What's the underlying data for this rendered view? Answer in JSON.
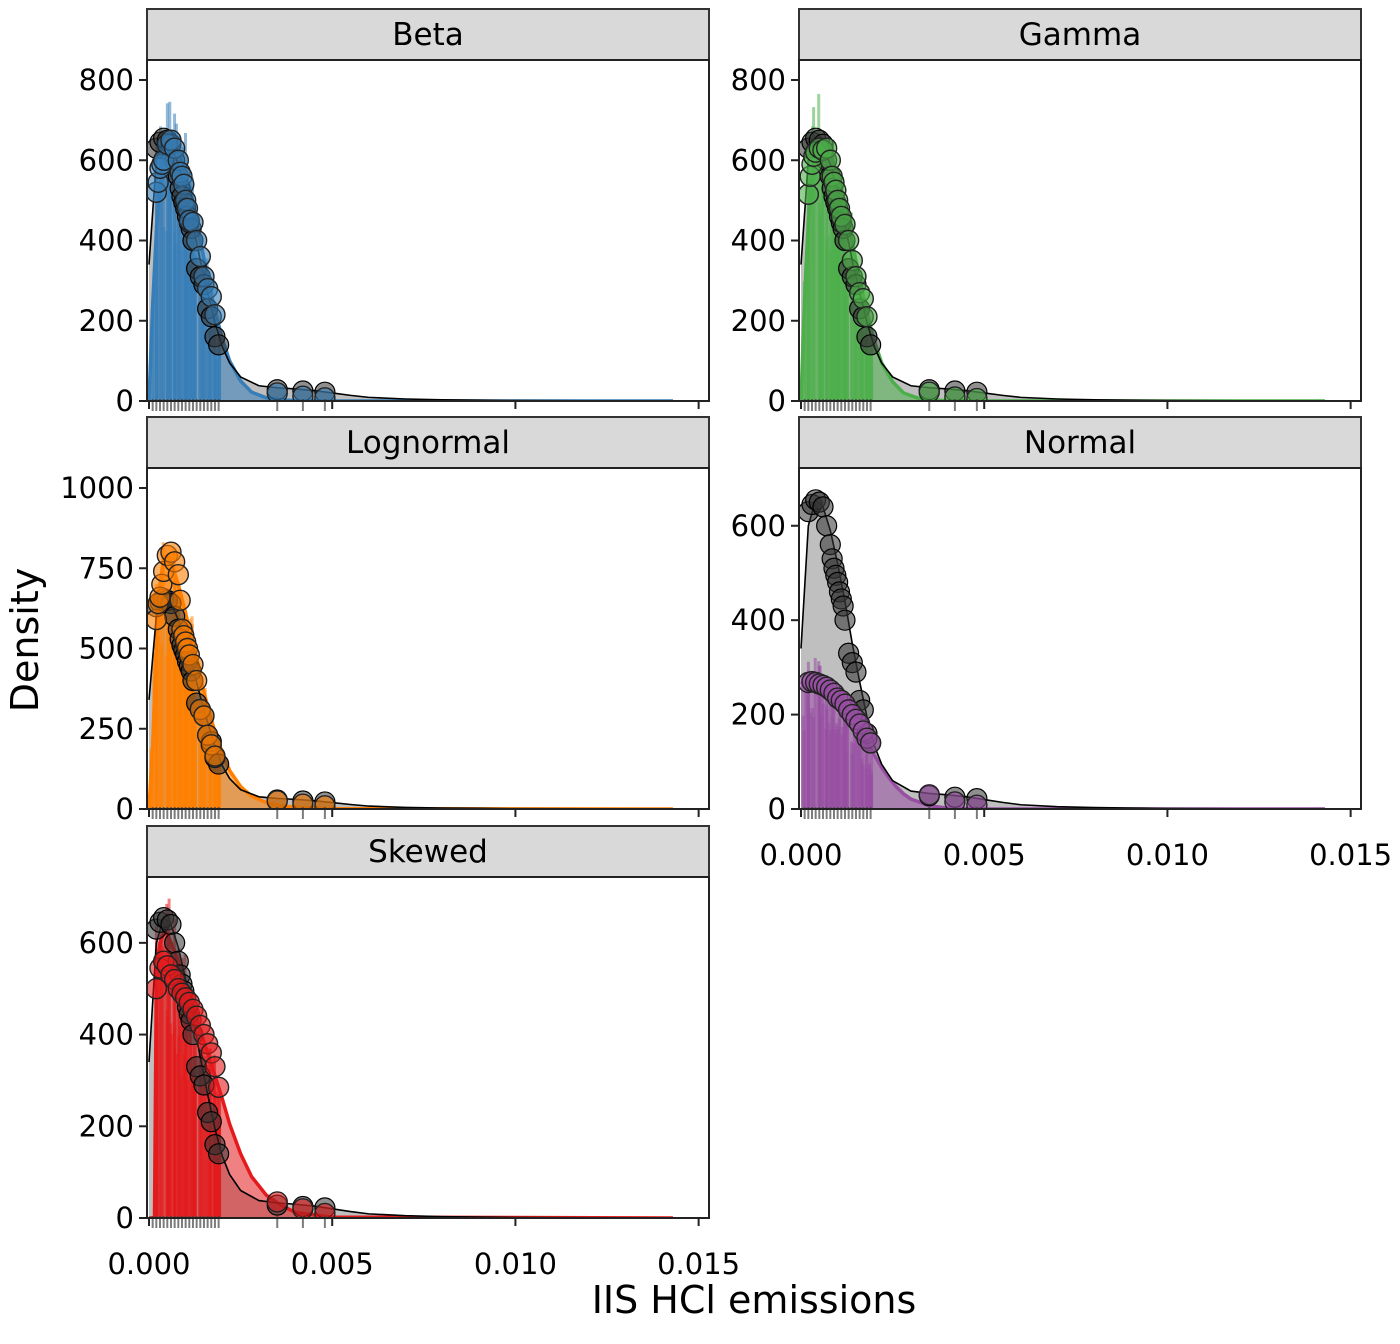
{
  "chart_data": {
    "type": "area",
    "facet_layout": "2 columns, 3 rows",
    "xlabel": "IIS HCl emissions",
    "ylabel": "Density",
    "xlim": [
      0,
      0.0143
    ],
    "x_ticks": [
      0.0,
      0.005,
      0.01,
      0.015
    ],
    "x_tick_labels": [
      "0.000",
      "0.005",
      "0.010",
      "0.015"
    ],
    "grid": false,
    "reference": {
      "color": "#000000",
      "curve": {
        "x": [
          0,
          0.0002,
          0.0004,
          0.0006,
          0.0008,
          0.001,
          0.0012,
          0.0014,
          0.0016,
          0.0018,
          0.002,
          0.0022,
          0.0025,
          0.003,
          0.0035,
          0.004,
          0.0045,
          0.005,
          0.0055,
          0.006,
          0.007,
          0.008,
          0.009,
          0.01,
          0.012,
          0.0143
        ],
        "y": [
          340,
          600,
          655,
          640,
          590,
          520,
          440,
          350,
          270,
          195,
          135,
          95,
          60,
          38,
          33,
          30,
          26,
          20,
          14,
          9,
          5,
          3,
          2,
          1,
          0.5,
          0.2
        ]
      },
      "points": {
        "x": [
          0.0002,
          0.0003,
          0.0004,
          0.0005,
          0.0006,
          0.0007,
          0.0008,
          0.00085,
          0.0009,
          0.00095,
          0.001,
          0.00105,
          0.0011,
          0.00115,
          0.0012,
          0.0013,
          0.0014,
          0.0015,
          0.0016,
          0.0017,
          0.0018,
          0.0019,
          0.0035,
          0.0042,
          0.0048
        ],
        "y": [
          630,
          645,
          655,
          650,
          640,
          600,
          560,
          530,
          510,
          495,
          480,
          460,
          445,
          430,
          400,
          330,
          310,
          290,
          230,
          210,
          160,
          140,
          28,
          25,
          22
        ]
      }
    },
    "panels": [
      {
        "name": "Beta",
        "color": "#377EB8",
        "ylim": [
          0,
          800
        ],
        "y_ticks": [
          0,
          200,
          400,
          600,
          800
        ],
        "y_tick_labels": [
          "0",
          "200",
          "400",
          "600",
          "800"
        ],
        "curve": {
          "x": [
            0,
            0.0001,
            0.0002,
            0.0003,
            0.0004,
            0.0005,
            0.0006,
            0.0008,
            0.001,
            0.0012,
            0.0014,
            0.0016,
            0.0018,
            0.002,
            0.0022,
            0.0025,
            0.0028,
            0.0032,
            0.0036,
            0.004,
            0.005,
            0.0143
          ],
          "y": [
            0,
            240,
            420,
            540,
            610,
            640,
            650,
            625,
            570,
            490,
            400,
            310,
            225,
            155,
            100,
            50,
            22,
            8,
            3,
            1,
            0,
            0
          ]
        },
        "points": {
          "x": [
            0.0002,
            0.00025,
            0.0003,
            0.00035,
            0.0004,
            0.0005,
            0.0006,
            0.0007,
            0.0008,
            0.00085,
            0.0009,
            0.00095,
            0.001,
            0.00105,
            0.0011,
            0.0012,
            0.0013,
            0.0014,
            0.0015,
            0.0016,
            0.0017,
            0.0018,
            0.0035,
            0.0042,
            0.0048
          ],
          "y": [
            520,
            545,
            580,
            590,
            600,
            640,
            650,
            630,
            600,
            570,
            560,
            540,
            500,
            480,
            450,
            445,
            400,
            360,
            310,
            280,
            260,
            215,
            20,
            12,
            8
          ]
        },
        "spikes_max": 800
      },
      {
        "name": "Gamma",
        "color": "#4DAF4A",
        "ylim": [
          0,
          800
        ],
        "y_ticks": [
          0,
          200,
          400,
          600,
          800
        ],
        "y_tick_labels": [
          "0",
          "200",
          "400",
          "600",
          "800"
        ],
        "curve": {
          "x": [
            0,
            0.0001,
            0.0002,
            0.0003,
            0.0004,
            0.0005,
            0.0006,
            0.0008,
            0.001,
            0.0012,
            0.0014,
            0.0016,
            0.0018,
            0.002,
            0.0022,
            0.0025,
            0.0028,
            0.0032,
            0.0036,
            0.004,
            0.005,
            0.0143
          ],
          "y": [
            0,
            260,
            450,
            560,
            620,
            645,
            650,
            620,
            560,
            480,
            395,
            305,
            220,
            150,
            95,
            48,
            20,
            7,
            2,
            1,
            0,
            0
          ]
        },
        "points": {
          "x": [
            0.0002,
            0.00025,
            0.0003,
            0.00035,
            0.0004,
            0.0005,
            0.0006,
            0.0007,
            0.0008,
            0.00085,
            0.0009,
            0.00095,
            0.001,
            0.00105,
            0.0011,
            0.0012,
            0.0013,
            0.0014,
            0.0015,
            0.0016,
            0.0017,
            0.0018,
            0.0035,
            0.0042,
            0.0048
          ],
          "y": [
            515,
            560,
            590,
            610,
            620,
            630,
            625,
            630,
            600,
            560,
            545,
            525,
            500,
            480,
            460,
            440,
            400,
            350,
            310,
            270,
            255,
            210,
            22,
            10,
            6
          ]
        },
        "spikes_max": 805
      },
      {
        "name": "Lognormal",
        "color": "#FF7F00",
        "ylim": [
          0,
          1000
        ],
        "y_ticks": [
          0,
          250,
          500,
          750,
          1000
        ],
        "y_tick_labels": [
          "0",
          "250",
          "500",
          "750",
          "1000"
        ],
        "curve": {
          "x": [
            0,
            0.0001,
            0.0002,
            0.0003,
            0.0004,
            0.0005,
            0.0006,
            0.0008,
            0.001,
            0.0012,
            0.0014,
            0.0016,
            0.0018,
            0.002,
            0.0022,
            0.0025,
            0.0028,
            0.0032,
            0.0036,
            0.004,
            0.005,
            0.0143
          ],
          "y": [
            0,
            200,
            500,
            700,
            780,
            790,
            770,
            700,
            610,
            510,
            410,
            320,
            240,
            175,
            120,
            70,
            40,
            20,
            10,
            5,
            1,
            0
          ]
        },
        "points": {
          "x": [
            0.0002,
            0.00025,
            0.0003,
            0.00035,
            0.0004,
            0.0005,
            0.0006,
            0.0007,
            0.0008,
            0.00085,
            0.0009,
            0.00095,
            0.001,
            0.00105,
            0.0011,
            0.0012,
            0.0013,
            0.0014,
            0.0015,
            0.0016,
            0.0017,
            0.0018,
            0.0035,
            0.0042,
            0.0048
          ],
          "y": [
            590,
            640,
            660,
            700,
            740,
            790,
            800,
            770,
            730,
            650,
            560,
            540,
            520,
            500,
            480,
            450,
            400,
            310,
            290,
            230,
            200,
            165,
            25,
            15,
            10
          ]
        },
        "spikes_max": 1030
      },
      {
        "name": "Normal",
        "color": "#984EA3",
        "ylim": [
          0,
          680
        ],
        "y_ticks": [
          0,
          200,
          400,
          600
        ],
        "y_tick_labels": [
          "0",
          "200",
          "400",
          "600"
        ],
        "curve": {
          "x": [
            0,
            0.0002,
            0.0004,
            0.0006,
            0.0008,
            0.001,
            0.0012,
            0.0014,
            0.0016,
            0.0018,
            0.002,
            0.0022,
            0.0024,
            0.0026,
            0.0028,
            0.003,
            0.0035,
            0.004,
            0.005,
            0.0143
          ],
          "y": [
            265,
            272,
            272,
            266,
            255,
            240,
            220,
            196,
            170,
            142,
            115,
            88,
            66,
            47,
            32,
            21,
            7,
            2,
            0,
            0
          ]
        },
        "points": {
          "x": [
            0.0002,
            0.0003,
            0.0004,
            0.0005,
            0.0006,
            0.0007,
            0.0008,
            0.0009,
            0.001,
            0.0011,
            0.0012,
            0.0013,
            0.0014,
            0.0015,
            0.0016,
            0.0017,
            0.0018,
            0.0019,
            0.0035,
            0.0042,
            0.0048
          ],
          "y": [
            268,
            270,
            268,
            265,
            262,
            258,
            252,
            245,
            235,
            230,
            222,
            210,
            200,
            190,
            180,
            165,
            150,
            140,
            30,
            15,
            8
          ]
        },
        "spikes_max": 345
      },
      {
        "name": "Skewed",
        "color": "#E41A1C",
        "ylim": [
          0,
          700
        ],
        "y_ticks": [
          0,
          200,
          400,
          600
        ],
        "y_tick_labels": [
          "0",
          "200",
          "400",
          "600"
        ],
        "curve": {
          "x": [
            0,
            0.0001,
            0.00015,
            0.0002,
            0.0003,
            0.0004,
            0.0005,
            0.0006,
            0.0008,
            0.001,
            0.0012,
            0.0014,
            0.0016,
            0.0018,
            0.002,
            0.0022,
            0.0025,
            0.0028,
            0.0032,
            0.0036,
            0.004,
            0.005,
            0.0143
          ],
          "y": [
            0,
            0,
            0,
            520,
            600,
            620,
            620,
            600,
            560,
            510,
            460,
            410,
            360,
            310,
            260,
            205,
            140,
            90,
            50,
            28,
            12,
            2,
            0
          ]
        },
        "points": {
          "x": [
            0.0002,
            0.0003,
            0.0004,
            0.0005,
            0.0006,
            0.0007,
            0.0008,
            0.0009,
            0.001,
            0.0011,
            0.0012,
            0.0013,
            0.0014,
            0.0015,
            0.0016,
            0.0017,
            0.0018,
            0.0019,
            0.0035,
            0.0042,
            0.0048
          ],
          "y": [
            500,
            545,
            560,
            550,
            530,
            520,
            500,
            490,
            480,
            470,
            455,
            440,
            420,
            400,
            380,
            360,
            330,
            285,
            35,
            20,
            10
          ]
        },
        "spikes_max": 700
      }
    ],
    "rug_x": [
      0.0001,
      0.0002,
      0.0003,
      0.0004,
      0.0005,
      0.0006,
      0.0007,
      0.0008,
      0.0009,
      0.001,
      0.0011,
      0.0012,
      0.0013,
      0.0014,
      0.0015,
      0.0016,
      0.0017,
      0.0018,
      0.0019,
      0.0035,
      0.0042,
      0.0048
    ]
  }
}
